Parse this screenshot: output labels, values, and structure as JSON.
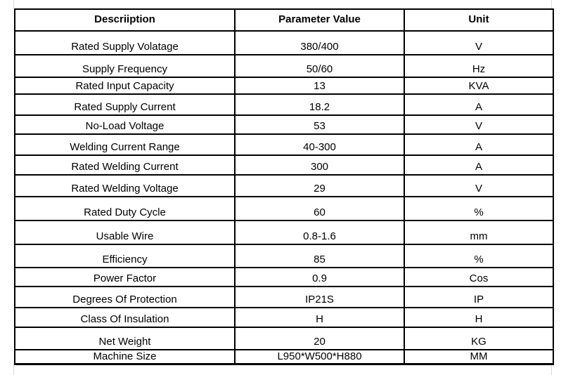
{
  "page": {
    "background_color": "#ffffff",
    "border_color": "#000000",
    "text_color": "#000000",
    "gridline_color": "#d9d9d9"
  },
  "table": {
    "columns": [
      "Descriiption",
      "Parameter Value",
      "Unit"
    ],
    "rows": [
      [
        "Rated Supply Volatage",
        "380/400",
        "V"
      ],
      [
        "Supply Frequency",
        "50/60",
        "Hz"
      ],
      [
        "Rated Input Capacity",
        "13",
        "KVA"
      ],
      [
        "Rated Supply Current",
        "18.2",
        "A"
      ],
      [
        "No-Load Voltage",
        "53",
        "V"
      ],
      [
        "Welding Current Range",
        "40-300",
        "A"
      ],
      [
        "Rated Welding Current",
        "300",
        "A"
      ],
      [
        "Rated Welding Voltage",
        "29",
        "V"
      ],
      [
        "Rated Duty Cycle",
        "60",
        "%"
      ],
      [
        "Usable Wire",
        "0.8-1.6",
        "mm"
      ],
      [
        "Efficiency",
        "85",
        "%"
      ],
      [
        "Power Factor",
        "0.9",
        "Cos"
      ],
      [
        "Degrees Of Protection",
        "IP21S",
        "IP"
      ],
      [
        "Class Of Insulation",
        "H",
        "H"
      ],
      [
        "Net Weight",
        "20",
        "KG"
      ],
      [
        "Machine Size",
        "L950*W500*H880",
        "MM"
      ]
    ]
  }
}
